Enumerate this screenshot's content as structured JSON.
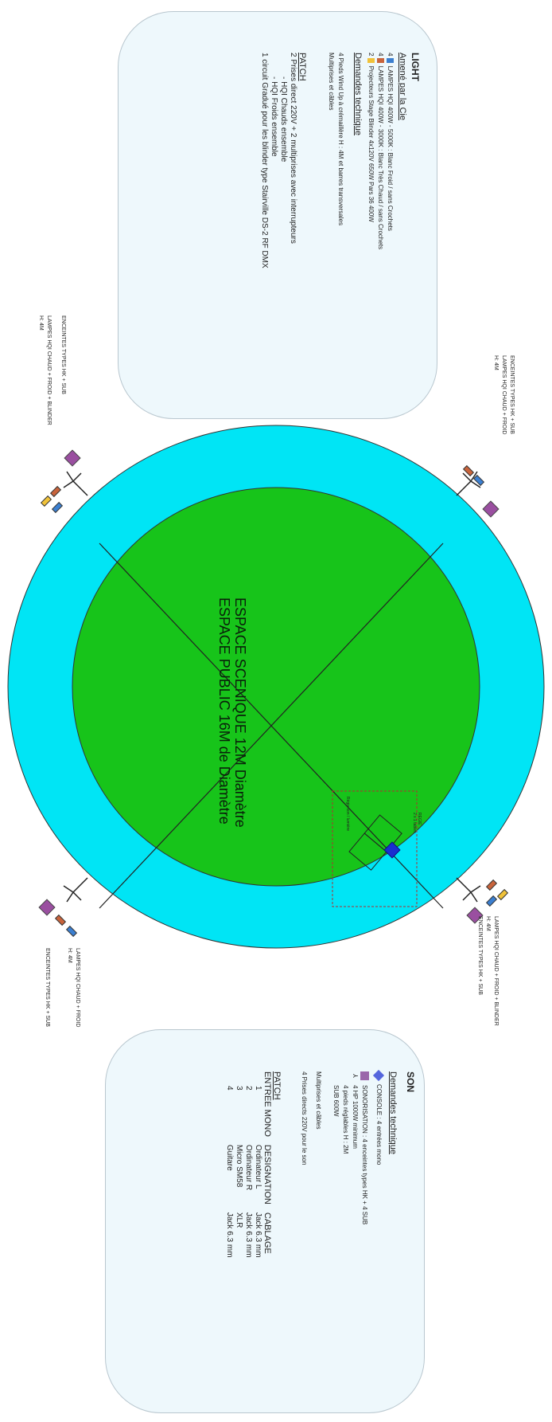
{
  "light": {
    "title": "LIGHT",
    "subtitle": "Amené par la Cie",
    "items": [
      {
        "qty": "4",
        "color": "#3b7fd0",
        "text": "LAMPES HQI 400W - 5000K : Blanc Froid / sans Crochets"
      },
      {
        "qty": "4",
        "color": "#c8643c",
        "text": "LAMPES HQI 400W - 3000K : Blanc Très Chaud / sans Crochets"
      },
      {
        "qty": "2",
        "color": "#f0c23a",
        "text": "Projecteurs Stage Blinder 4x120V 650W Pars 36 400W"
      }
    ],
    "demandes_title": "Demandes technique",
    "demandes": [
      "4 Pieds Wind Up à crémaillère H : 4M et barres transversales",
      "Multiprises et câbles"
    ],
    "patch_title": "PATCH",
    "patch": [
      "2 Prises direct 220V + 2 multiprises avec interrupteurs",
      "- HQI Chauds ensemble",
      "- HQI Froids ensemble",
      "1 circuit Gradué pour les blinder type Stairville DS-2 RF DMX"
    ]
  },
  "son": {
    "title": "SON",
    "demandes_title": "Demandes technique",
    "items": [
      {
        "icon": "diamond",
        "color": "#5566dd",
        "text": "CONSOLE : 4 entrées mono"
      },
      {
        "icon": "square",
        "color": "#9a66aa",
        "text": "SONORISATION : 4 enceintes types HK + 4 SUB"
      },
      {
        "icon": "stand",
        "color": "#444444",
        "text": "4 HP 1000W minimum"
      },
      {
        "icon": "",
        "color": "",
        "text": "4 pieds réglables H : 2M"
      },
      {
        "icon": "",
        "color": "",
        "text": "SUB 600W"
      }
    ],
    "extra": [
      "Multiprises et câbles",
      "4 Prises directs 220V pour le son"
    ],
    "patch_title": "PATCH",
    "patch_headers": [
      "ENTREE MONO",
      "DESIGNATION",
      "CABLAGE"
    ],
    "patch_rows": [
      [
        "1",
        "Ordinateur L",
        "Jack 6.3 mm"
      ],
      [
        "2",
        "Ordinateur R",
        "Jack 6.3 mm"
      ],
      [
        "3",
        "Micro SM58",
        "XLR"
      ],
      [
        "4",
        "Guitare",
        "Jack 6.3 mm"
      ]
    ]
  },
  "center": {
    "line1": "ESPACE SCENIQUE 12M Diamètre",
    "line2": "ESPACE PUBLIC 16M de Diamètre"
  },
  "regie": {
    "label1": "REGIE",
    "label2": "2 x 1 tables",
    "label3": "Régie son / lumière"
  },
  "posts": {
    "top_right": {
      "line1": "ENCEINTES TYPES HK + SUB",
      "line2": "LAMPES HQI CHAUD + FROID",
      "line3": "H: 4M"
    },
    "top_left": {
      "line1": "ENCEINTES TYPES HK + SUB",
      "line2": "LAMPES HQI CHAUD + FROID + BLINDER",
      "line3": "H: 4M"
    },
    "bottom_right": {
      "line1": "LAMPES HQI CHAUD + FROID + BLINDER",
      "line2": "H: 4M",
      "line3": "ENCEINTES TYPES HK + SUB"
    },
    "bottom_left": {
      "line1": "LAMPES HQI CHAUD + FROID",
      "line2": "H: 4M",
      "line3": "ENCEINTES TYPES HK + SUB"
    }
  },
  "colors": {
    "public": "#00e5f5",
    "stage": "#17c41a",
    "speaker": "#9a4fa0",
    "lamp_cold": "#3b7fd0",
    "lamp_warm": "#c8643c",
    "blinder": "#f0c23a",
    "console": "#1a2fd0"
  }
}
